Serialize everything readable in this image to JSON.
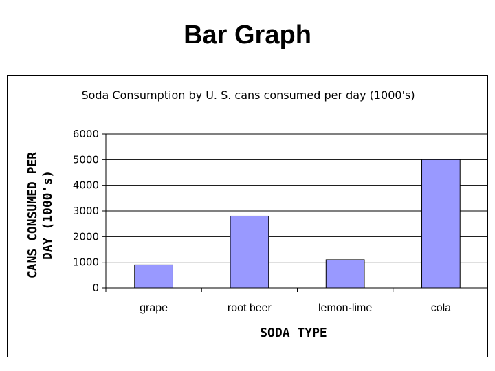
{
  "page": {
    "title": "Bar Graph"
  },
  "chart_data": {
    "type": "bar",
    "title": "Soda Consumption by U. S.  cans consumed per day (1000's)",
    "xlabel": "SODA TYPE",
    "ylabel_lines": [
      "CANS CONSUMED PER",
      "DAY (1000's)"
    ],
    "categories": [
      "grape",
      "root beer",
      "lemon-lime",
      "cola"
    ],
    "values": [
      900,
      2800,
      1100,
      5000
    ],
    "ylim": [
      0,
      6000
    ],
    "yticks": [
      0,
      1000,
      2000,
      3000,
      4000,
      5000,
      6000
    ],
    "grid": true,
    "legend": "none",
    "bar_color": "#9999ff"
  }
}
